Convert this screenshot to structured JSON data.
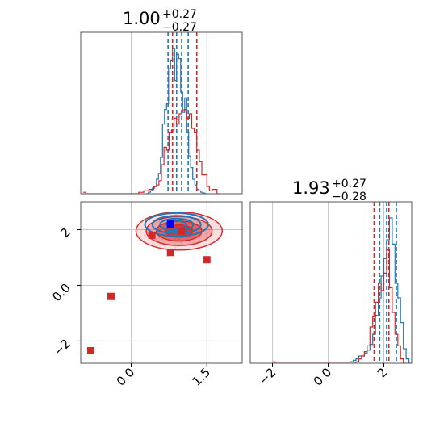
{
  "figure": {
    "titles": [
      {
        "panel": "x1-marginal",
        "value": "1.00",
        "plus": "+0.27",
        "minus": "−0.27"
      },
      {
        "panel": "x2-marginal",
        "value": "1.93",
        "plus": "+0.27",
        "minus": "−0.28"
      }
    ],
    "colors": {
      "red": "#d62728",
      "blue": "#1f77b4",
      "grid": "#c8c8c8",
      "frame": "#555555"
    }
  },
  "chart_data": [
    {
      "type": "histogram",
      "panel": "top-left",
      "title": "1.00 +0.27 −0.27",
      "xlim": [
        -1.0,
        2.2
      ],
      "xticks": [
        0.0,
        1.5
      ],
      "grid": true,
      "series": [
        {
          "color": "#1f77b4",
          "bins_x": [
            0.3,
            0.34,
            0.38,
            0.42,
            0.46,
            0.5,
            0.54,
            0.58,
            0.62,
            0.66,
            0.7,
            0.74,
            0.78,
            0.82,
            0.86,
            0.9,
            0.94,
            0.98,
            1.02,
            1.06,
            1.1,
            1.14,
            1.18,
            1.22,
            1.26,
            1.3,
            1.34,
            1.38,
            1.42,
            1.46
          ],
          "counts": [
            0,
            0.01,
            0.02,
            0.04,
            0.05,
            0.1,
            0.14,
            0.25,
            0.48,
            0.58,
            0.62,
            0.86,
            0.92,
            1.0,
            0.78,
            0.96,
            0.93,
            0.7,
            0.56,
            0.66,
            0.42,
            0.26,
            0.18,
            0.1,
            0.06,
            0.03,
            0.02,
            0.01,
            0.005,
            0
          ],
          "quantile_lines": [
            0.73,
            0.9,
            1.0,
            1.13
          ]
        },
        {
          "color": "#d62728",
          "bins_x": [
            -0.95,
            -0.9,
            0.15,
            0.25,
            0.35,
            0.45,
            0.5,
            0.55,
            0.6,
            0.65,
            0.7,
            0.75,
            0.8,
            0.85,
            0.9,
            0.95,
            1.0,
            1.05,
            1.1,
            1.15,
            1.2,
            1.25,
            1.3,
            1.35,
            1.4,
            1.45,
            1.5,
            1.55,
            1.6,
            1.7
          ],
          "counts": [
            0.01,
            0.0,
            0.01,
            0.02,
            0.03,
            0.05,
            0.06,
            0.09,
            0.2,
            0.32,
            0.3,
            0.42,
            0.44,
            0.52,
            0.48,
            0.55,
            0.57,
            0.58,
            0.52,
            0.55,
            0.45,
            0.42,
            0.3,
            0.22,
            0.13,
            0.13,
            0.05,
            0.02,
            0.03,
            0.0
          ],
          "quantile_lines": [
            0.82,
            1.3
          ]
        }
      ]
    },
    {
      "type": "scatter",
      "panel": "bottom-left",
      "xlim": [
        -1.0,
        2.2
      ],
      "ylim": [
        -2.8,
        3.0
      ],
      "xticks": [
        0.0,
        1.5
      ],
      "yticks": [
        -2,
        0,
        2
      ],
      "grid": true,
      "contours": [
        {
          "color": "#d62728",
          "center": [
            0.95,
            1.95
          ],
          "spread": [
            0.45,
            0.36
          ]
        },
        {
          "color": "#1f77b4",
          "center": [
            0.9,
            2.18
          ],
          "spread": [
            0.33,
            0.22
          ]
        }
      ],
      "points": [
        {
          "x": 0.41,
          "y": 1.8,
          "color": "#d62728"
        },
        {
          "x": 0.78,
          "y": 1.18,
          "color": "#d62728"
        },
        {
          "x": 1.0,
          "y": 1.95,
          "color": "#d62728"
        },
        {
          "x": 1.5,
          "y": 0.92,
          "color": "#d62728"
        },
        {
          "x": -0.4,
          "y": -0.4,
          "color": "#d62728"
        },
        {
          "x": -0.8,
          "y": -2.35,
          "color": "#d62728"
        },
        {
          "x": 0.78,
          "y": 2.2,
          "color": "#0000ff"
        }
      ]
    },
    {
      "type": "histogram",
      "panel": "bottom-right",
      "title": "1.93 +0.27 −0.28",
      "xlim": [
        -2.8,
        3.0
      ],
      "xticks": [
        -2,
        0,
        2
      ],
      "grid": true,
      "series": [
        {
          "color": "#1f77b4",
          "bins_x": [
            0.8,
            0.9,
            1.0,
            1.1,
            1.2,
            1.3,
            1.4,
            1.5,
            1.6,
            1.7,
            1.8,
            1.9,
            2.0,
            2.1,
            2.2,
            2.3,
            2.4,
            2.5,
            2.6,
            2.7,
            2.8,
            2.9
          ],
          "counts": [
            0.01,
            0.02,
            0.03,
            0.05,
            0.05,
            0.07,
            0.09,
            0.13,
            0.2,
            0.33,
            0.45,
            0.6,
            0.72,
            0.85,
            1.0,
            0.82,
            0.55,
            0.45,
            0.28,
            0.1,
            0.03,
            0.0
          ],
          "quantile_lines": [
            1.85,
            2.1,
            2.45
          ]
        },
        {
          "color": "#d62728",
          "bins_x": [
            -2.0,
            -1.9,
            1.0,
            1.1,
            1.2,
            1.3,
            1.4,
            1.5,
            1.6,
            1.7,
            1.8,
            1.9,
            2.0,
            2.1,
            2.2,
            2.3,
            2.4,
            2.5,
            2.6,
            2.7
          ],
          "counts": [
            0.01,
            0.0,
            0.01,
            0.03,
            0.05,
            0.08,
            0.12,
            0.25,
            0.32,
            0.42,
            0.55,
            0.5,
            0.62,
            0.78,
            0.52,
            0.35,
            0.2,
            0.12,
            0.03,
            0.0
          ],
          "quantile_lines": [
            1.65,
            2.18
          ]
        }
      ]
    }
  ]
}
